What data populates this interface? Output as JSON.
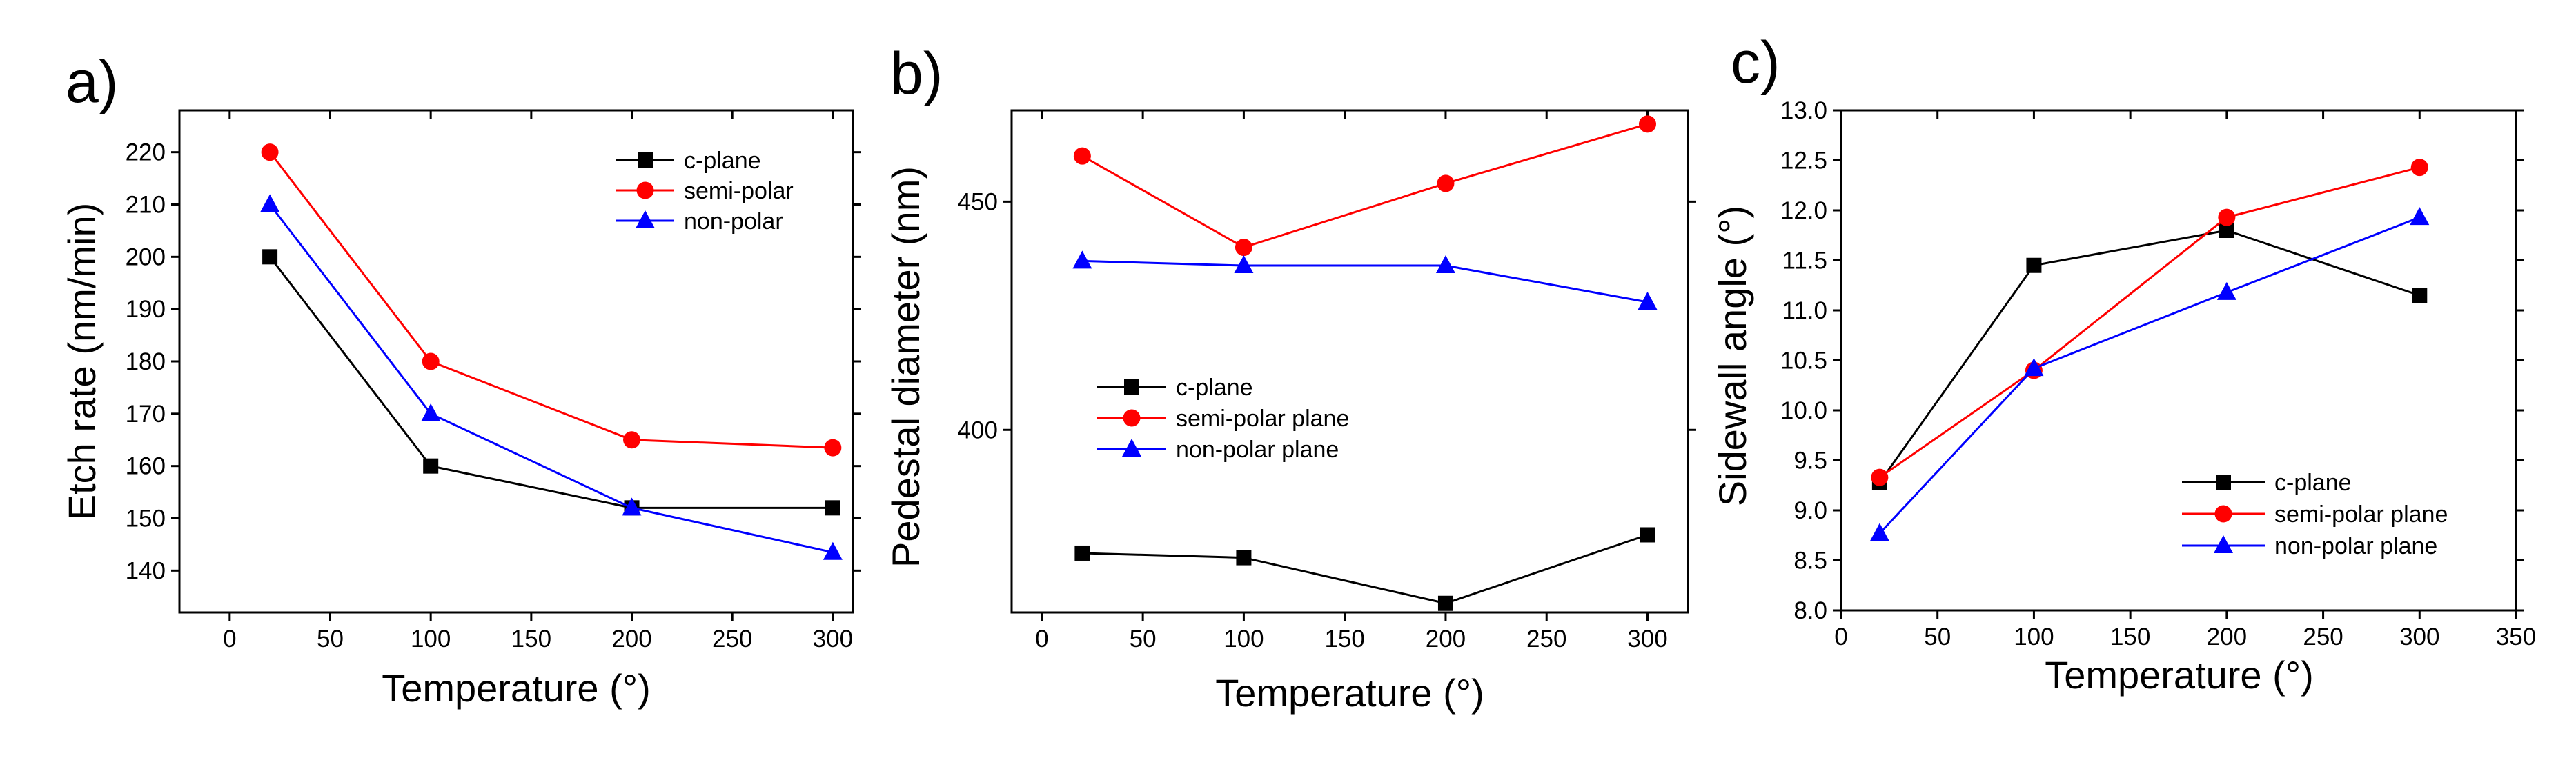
{
  "colors": {
    "c_plane": "#000000",
    "semi_polar": "#ff0000",
    "non_polar": "#0000ff"
  },
  "chart_data": [
    {
      "type": "line",
      "panel_label": "a)",
      "xlabel": "Temperature (°)",
      "ylabel": "Etch rate (nm/min)",
      "xlim": [
        -25,
        310
      ],
      "ylim": [
        132,
        228
      ],
      "xticks": [
        0,
        50,
        100,
        150,
        200,
        250,
        300
      ],
      "yticks": [
        140,
        150,
        160,
        170,
        180,
        190,
        200,
        210,
        220
      ],
      "x": [
        20,
        100,
        200,
        300
      ],
      "legend_position": "top-right",
      "series": [
        {
          "name": "c-plane",
          "marker": "square",
          "color": "#000000",
          "values": [
            200,
            160,
            152,
            152
          ]
        },
        {
          "name": "semi-polar",
          "marker": "circle",
          "color": "#ff0000",
          "values": [
            220,
            180,
            165,
            163.5
          ]
        },
        {
          "name": "non-polar",
          "marker": "triangle",
          "color": "#0000ff",
          "values": [
            210,
            170,
            152,
            143.5
          ]
        }
      ]
    },
    {
      "type": "line",
      "panel_label": "b)",
      "xlabel": "Temperature (°)",
      "ylabel": "Pedestal diameter (nm)",
      "xlim": [
        -15,
        320
      ],
      "ylim": [
        360,
        470
      ],
      "xticks": [
        0,
        50,
        100,
        150,
        200,
        250,
        300
      ],
      "yticks": [
        400,
        450
      ],
      "x": [
        20,
        100,
        200,
        300
      ],
      "legend_position": "center-left",
      "series": [
        {
          "name": "c-plane",
          "marker": "square",
          "color": "#000000",
          "values": [
            373,
            372,
            362,
            377
          ]
        },
        {
          "name": "semi-polar plane",
          "marker": "circle",
          "color": "#ff0000",
          "values": [
            460,
            440,
            454,
            467
          ]
        },
        {
          "name": "non-polar plane",
          "marker": "triangle",
          "color": "#0000ff",
          "values": [
            437,
            436,
            436,
            428
          ]
        }
      ]
    },
    {
      "type": "line",
      "panel_label": "c)",
      "xlabel": "Temperature (°)",
      "ylabel": "Sidewall angle (°)",
      "xlim": [
        0,
        350
      ],
      "ylim": [
        8.0,
        13.0
      ],
      "xticks": [
        0,
        50,
        100,
        150,
        200,
        250,
        300,
        350
      ],
      "yticks": [
        8.0,
        8.5,
        9.0,
        9.5,
        10.0,
        10.5,
        11.0,
        11.5,
        12.0,
        12.5,
        13.0
      ],
      "x": [
        20,
        100,
        200,
        300
      ],
      "legend_position": "bottom-right",
      "series": [
        {
          "name": "c-plane",
          "marker": "square",
          "color": "#000000",
          "values": [
            9.28,
            11.45,
            11.8,
            11.15
          ]
        },
        {
          "name": "semi-polar plane",
          "marker": "circle",
          "color": "#ff0000",
          "values": [
            9.33,
            10.4,
            11.93,
            12.43
          ]
        },
        {
          "name": "non-polar plane",
          "marker": "triangle",
          "color": "#0000ff",
          "values": [
            8.77,
            10.42,
            11.18,
            11.93
          ]
        }
      ]
    }
  ]
}
